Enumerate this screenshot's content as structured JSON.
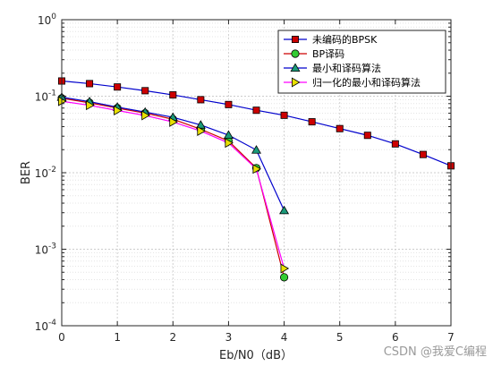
{
  "chart_data": {
    "type": "line",
    "title": "",
    "xlabel": "Eb/N0（dB）",
    "ylabel": "BER",
    "xlim": [
      0,
      7
    ],
    "ylim": [
      0.0001,
      1
    ],
    "yscale": "log",
    "grid": true,
    "legend_position": "top-right",
    "x_ticks": [
      "0",
      "1",
      "2",
      "3",
      "4",
      "5",
      "6",
      "7"
    ],
    "y_ticks": [
      {
        "base": "10",
        "exp": "0",
        "value": 1
      },
      {
        "base": "10",
        "exp": "-1",
        "value": 0.1
      },
      {
        "base": "10",
        "exp": "-2",
        "value": 0.01
      },
      {
        "base": "10",
        "exp": "-3",
        "value": 0.001
      },
      {
        "base": "10",
        "exp": "-4",
        "value": 0.0001
      }
    ],
    "series": [
      {
        "name": "未编码的BPSK",
        "color": "#0000cc",
        "marker": "square",
        "marker_color": "#cc0000",
        "x": [
          0,
          0.5,
          1,
          1.5,
          2,
          2.5,
          3,
          3.5,
          4,
          4.5,
          5,
          5.5,
          6,
          6.5,
          7
        ],
        "y": [
          0.158,
          0.146,
          0.132,
          0.118,
          0.104,
          0.09,
          0.0778,
          0.0655,
          0.0563,
          0.0463,
          0.0377,
          0.0308,
          0.0238,
          0.0173,
          0.0123
        ]
      },
      {
        "name": "BP译码",
        "color": "#cc0000",
        "marker": "circle",
        "marker_color": "#33cc33",
        "x": [
          0,
          0.5,
          1,
          1.5,
          2,
          2.5,
          3,
          3.5,
          4
        ],
        "y": [
          0.094,
          0.082,
          0.07,
          0.06,
          0.05,
          0.037,
          0.026,
          0.0115,
          0.00043
        ]
      },
      {
        "name": "最小和译码算法",
        "color": "#0000cc",
        "marker": "triangle-up",
        "marker_color": "#1a9a7a",
        "x": [
          0,
          0.5,
          1,
          1.5,
          2,
          2.5,
          3,
          3.5,
          4
        ],
        "y": [
          0.097,
          0.085,
          0.072,
          0.062,
          0.053,
          0.042,
          0.031,
          0.0198,
          0.0032
        ]
      },
      {
        "name": "归一化的最小和译码算法",
        "color": "#ff00ff",
        "marker": "triangle-right",
        "marker_color": "#e8e000",
        "x": [
          0,
          0.5,
          1,
          1.5,
          2,
          2.5,
          3,
          3.5,
          4
        ],
        "y": [
          0.086,
          0.076,
          0.065,
          0.056,
          0.046,
          0.035,
          0.0245,
          0.0112,
          0.00056
        ]
      }
    ]
  },
  "watermark": "CSDN @我爱C编程"
}
